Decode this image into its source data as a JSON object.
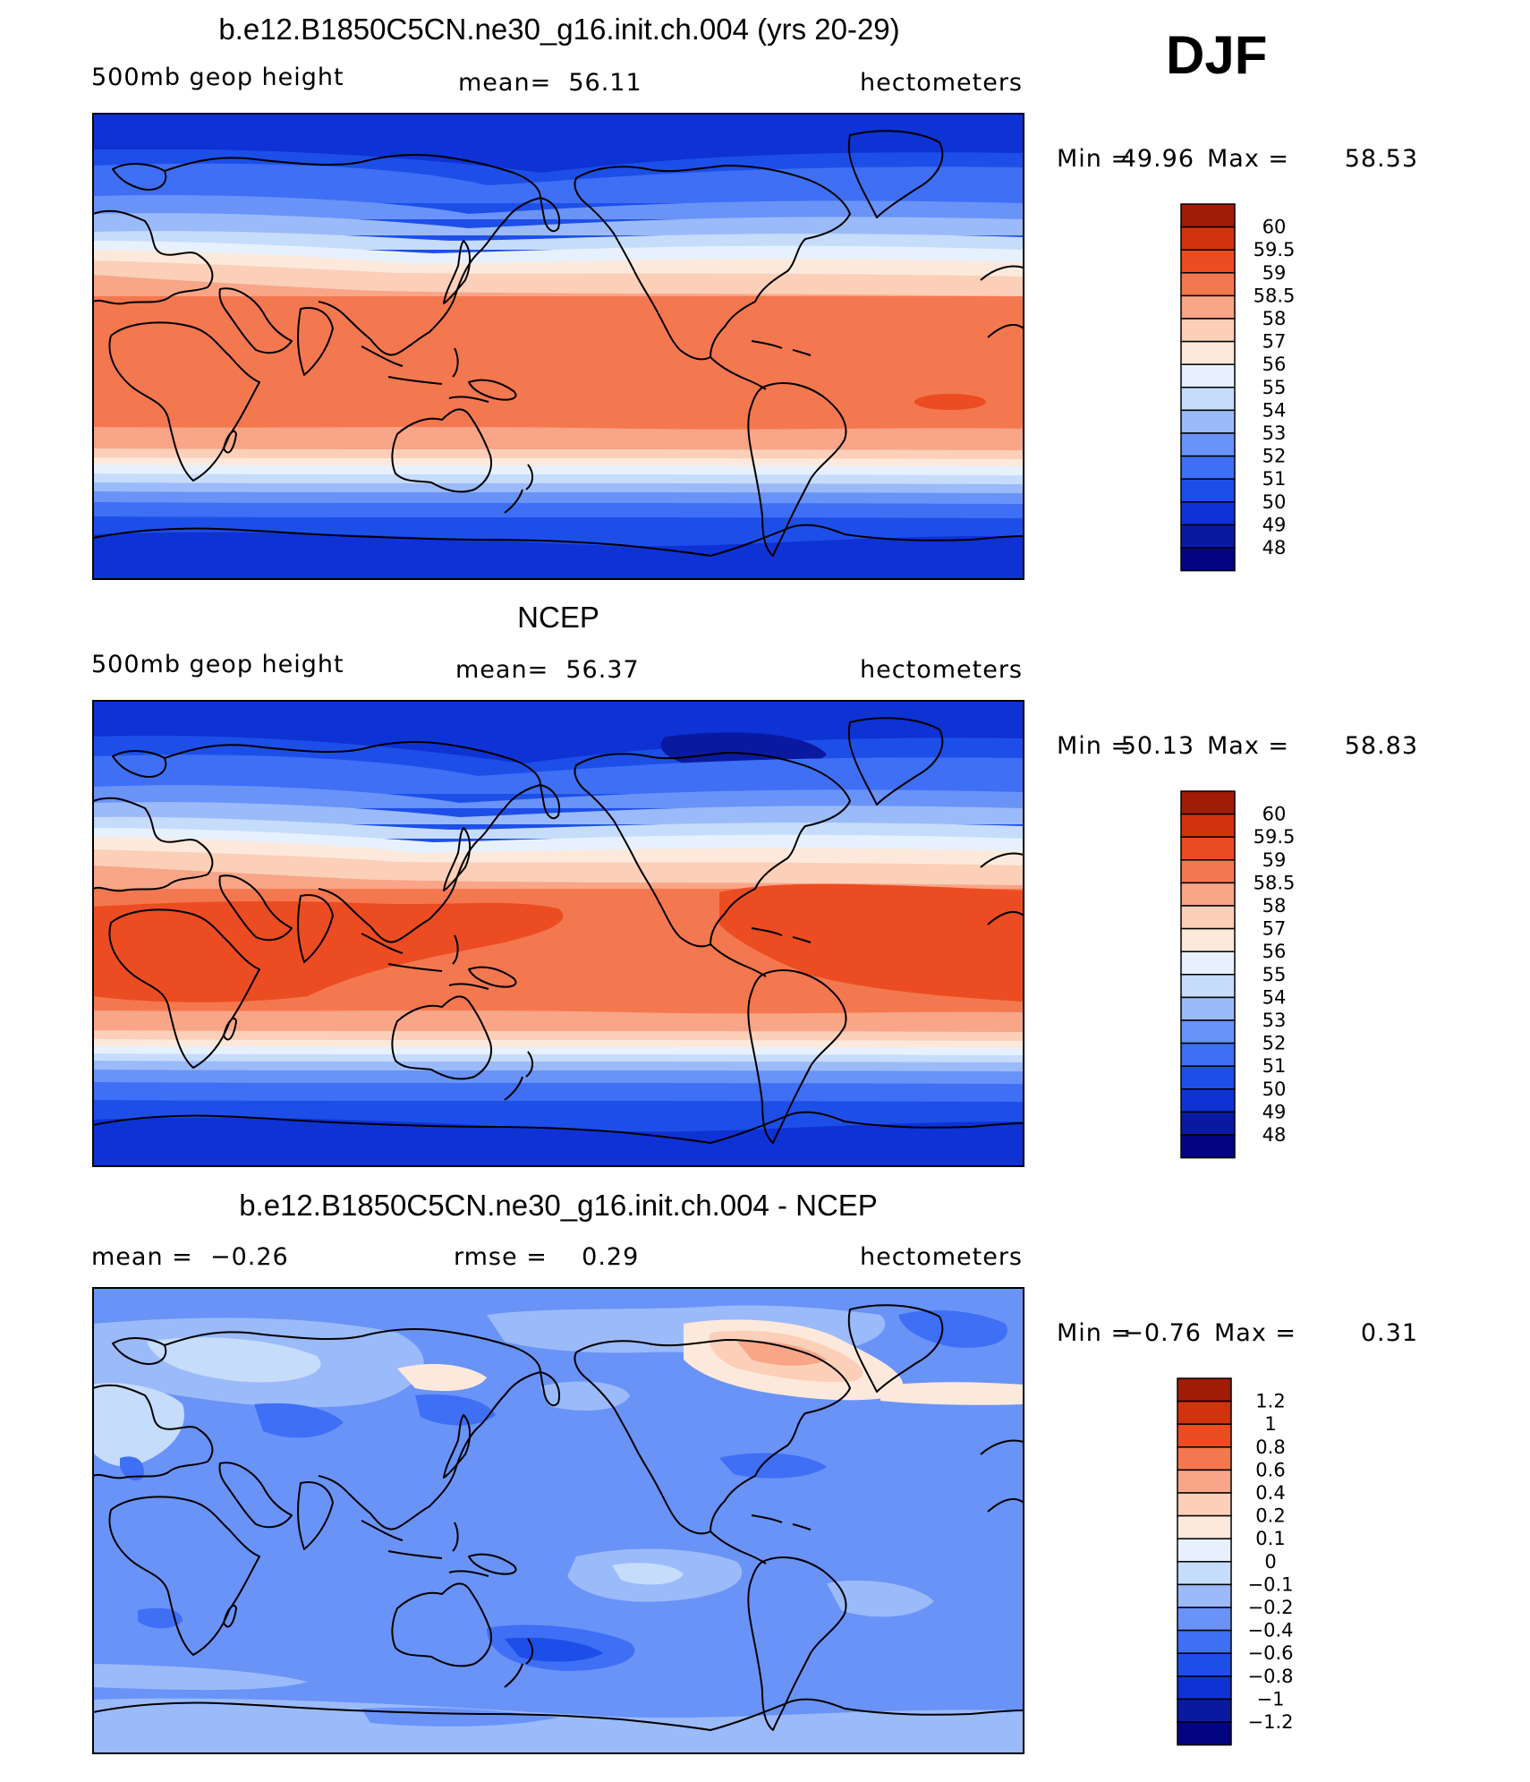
{
  "season": "DJF",
  "colors": {
    "diverging": [
      "#030482",
      "#0a1aa0",
      "#0f32d4",
      "#1d4fe8",
      "#3e6ff5",
      "#6a93f8",
      "#9bbaf9",
      "#c6dcfb",
      "#e7f1fd",
      "#fde9dc",
      "#fbcfb8",
      "#f8a588",
      "#f4784f",
      "#ec4c21",
      "#d2330d",
      "#a11c07",
      "#7e0b04"
    ]
  },
  "panels": [
    {
      "id": "model",
      "title": "b.e12.B1850C5CN.ne30_g16.init.ch.004 (yrs 20-29)",
      "left_text": "500mb geop height",
      "center_text": "mean=  56.11",
      "right_text": "hectometers",
      "min_label": "Min =",
      "min_value": "49.96",
      "max_label": "Max =",
      "max_value": "58.53",
      "colorbar_labels": [
        "60",
        "59.5",
        "59",
        "58.5",
        "58",
        "57",
        "56",
        "55",
        "54",
        "53",
        "52",
        "51",
        "50",
        "49",
        "48"
      ]
    },
    {
      "id": "obs",
      "title": "NCEP",
      "left_text": "500mb geop height",
      "center_text": "mean=  56.37",
      "right_text": "hectometers",
      "min_label": "Min =",
      "min_value": "50.13",
      "max_label": "Max =",
      "max_value": "58.83",
      "colorbar_labels": [
        "60",
        "59.5",
        "59",
        "58.5",
        "58",
        "57",
        "56",
        "55",
        "54",
        "53",
        "52",
        "51",
        "50",
        "49",
        "48"
      ]
    },
    {
      "id": "diff",
      "title": "b.e12.B1850C5CN.ne30_g16.init.ch.004 - NCEP",
      "left_text": "mean =  −0.26",
      "center_text": "rmse =    0.29",
      "right_text": "hectometers",
      "min_label": "Min =",
      "min_value": "−0.76",
      "max_label": "Max =",
      "max_value": "0.31",
      "colorbar_labels": [
        "1.2",
        "1",
        "0.8",
        "0.6",
        "0.4",
        "0.2",
        "0.1",
        "0",
        "−0.1",
        "−0.2",
        "−0.4",
        "−0.6",
        "−0.8",
        "−1",
        "−1.2"
      ]
    }
  ]
}
